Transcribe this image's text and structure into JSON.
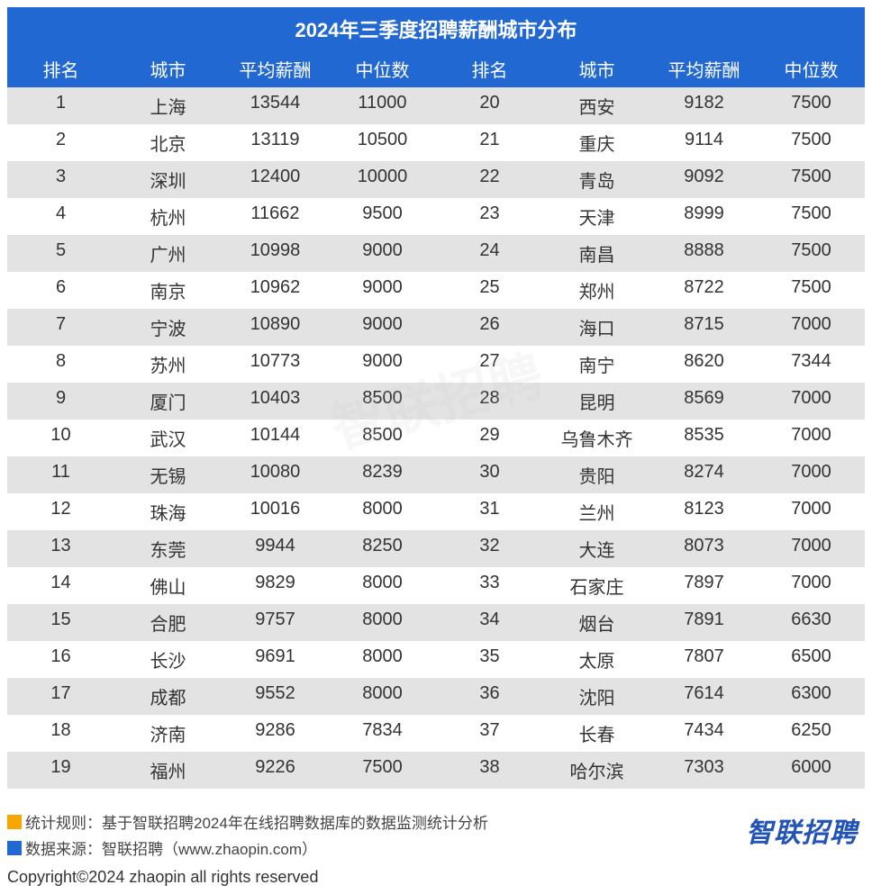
{
  "title": "2024年三季度招聘薪酬城市分布",
  "columns": [
    "排名",
    "城市",
    "平均薪酬",
    "中位数",
    "排名",
    "城市",
    "平均薪酬",
    "中位数"
  ],
  "colors": {
    "header_bg": "#2268d2",
    "header_text": "#ffffff",
    "row_even_bg": "#e3e3e3",
    "row_odd_bg": "#ffffff",
    "body_text": "#333333",
    "note_square_rule": "#f6a800",
    "note_square_source": "#2268d2",
    "logo_color": "#2253b8"
  },
  "typography": {
    "title_fontsize": 22,
    "header_fontsize": 20,
    "cell_fontsize": 20,
    "note_fontsize": 17,
    "logo_fontsize": 30,
    "copyright_fontsize": 18
  },
  "left_rows": [
    {
      "rank": 1,
      "city": "上海",
      "avg": 13544,
      "median": 11000
    },
    {
      "rank": 2,
      "city": "北京",
      "avg": 13119,
      "median": 10500
    },
    {
      "rank": 3,
      "city": "深圳",
      "avg": 12400,
      "median": 10000
    },
    {
      "rank": 4,
      "city": "杭州",
      "avg": 11662,
      "median": 9500
    },
    {
      "rank": 5,
      "city": "广州",
      "avg": 10998,
      "median": 9000
    },
    {
      "rank": 6,
      "city": "南京",
      "avg": 10962,
      "median": 9000
    },
    {
      "rank": 7,
      "city": "宁波",
      "avg": 10890,
      "median": 9000
    },
    {
      "rank": 8,
      "city": "苏州",
      "avg": 10773,
      "median": 9000
    },
    {
      "rank": 9,
      "city": "厦门",
      "avg": 10403,
      "median": 8500
    },
    {
      "rank": 10,
      "city": "武汉",
      "avg": 10144,
      "median": 8500
    },
    {
      "rank": 11,
      "city": "无锡",
      "avg": 10080,
      "median": 8239
    },
    {
      "rank": 12,
      "city": "珠海",
      "avg": 10016,
      "median": 8000
    },
    {
      "rank": 13,
      "city": "东莞",
      "avg": 9944,
      "median": 8250
    },
    {
      "rank": 14,
      "city": "佛山",
      "avg": 9829,
      "median": 8000
    },
    {
      "rank": 15,
      "city": "合肥",
      "avg": 9757,
      "median": 8000
    },
    {
      "rank": 16,
      "city": "长沙",
      "avg": 9691,
      "median": 8000
    },
    {
      "rank": 17,
      "city": "成都",
      "avg": 9552,
      "median": 8000
    },
    {
      "rank": 18,
      "city": "济南",
      "avg": 9286,
      "median": 7834
    },
    {
      "rank": 19,
      "city": "福州",
      "avg": 9226,
      "median": 7500
    }
  ],
  "right_rows": [
    {
      "rank": 20,
      "city": "西安",
      "avg": 9182,
      "median": 7500
    },
    {
      "rank": 21,
      "city": "重庆",
      "avg": 9114,
      "median": 7500
    },
    {
      "rank": 22,
      "city": "青岛",
      "avg": 9092,
      "median": 7500
    },
    {
      "rank": 23,
      "city": "天津",
      "avg": 8999,
      "median": 7500
    },
    {
      "rank": 24,
      "city": "南昌",
      "avg": 8888,
      "median": 7500
    },
    {
      "rank": 25,
      "city": "郑州",
      "avg": 8722,
      "median": 7500
    },
    {
      "rank": 26,
      "city": "海口",
      "avg": 8715,
      "median": 7000
    },
    {
      "rank": 27,
      "city": "南宁",
      "avg": 8620,
      "median": 7344
    },
    {
      "rank": 28,
      "city": "昆明",
      "avg": 8569,
      "median": 7000
    },
    {
      "rank": 29,
      "city": "乌鲁木齐",
      "avg": 8535,
      "median": 7000
    },
    {
      "rank": 30,
      "city": "贵阳",
      "avg": 8274,
      "median": 7000
    },
    {
      "rank": 31,
      "city": "兰州",
      "avg": 8123,
      "median": 7000
    },
    {
      "rank": 32,
      "city": "大连",
      "avg": 8073,
      "median": 7000
    },
    {
      "rank": 33,
      "city": "石家庄",
      "avg": 7897,
      "median": 7000
    },
    {
      "rank": 34,
      "city": "烟台",
      "avg": 7891,
      "median": 6630
    },
    {
      "rank": 35,
      "city": "太原",
      "avg": 7807,
      "median": 6500
    },
    {
      "rank": 36,
      "city": "沈阳",
      "avg": 7614,
      "median": 6300
    },
    {
      "rank": 37,
      "city": "长春",
      "avg": 7434,
      "median": 6250
    },
    {
      "rank": 38,
      "city": "哈尔滨",
      "avg": 7303,
      "median": 6000
    }
  ],
  "watermark": "智联招聘",
  "notes": {
    "rule": "统计规则：基于智联招聘2024年在线招聘数据库的数据监测统计分析",
    "source": "数据来源：智联招聘（www.zhaopin.com）"
  },
  "logo_text": "智联招聘",
  "copyright": "Copyright©2024 zhaopin all rights reserved"
}
